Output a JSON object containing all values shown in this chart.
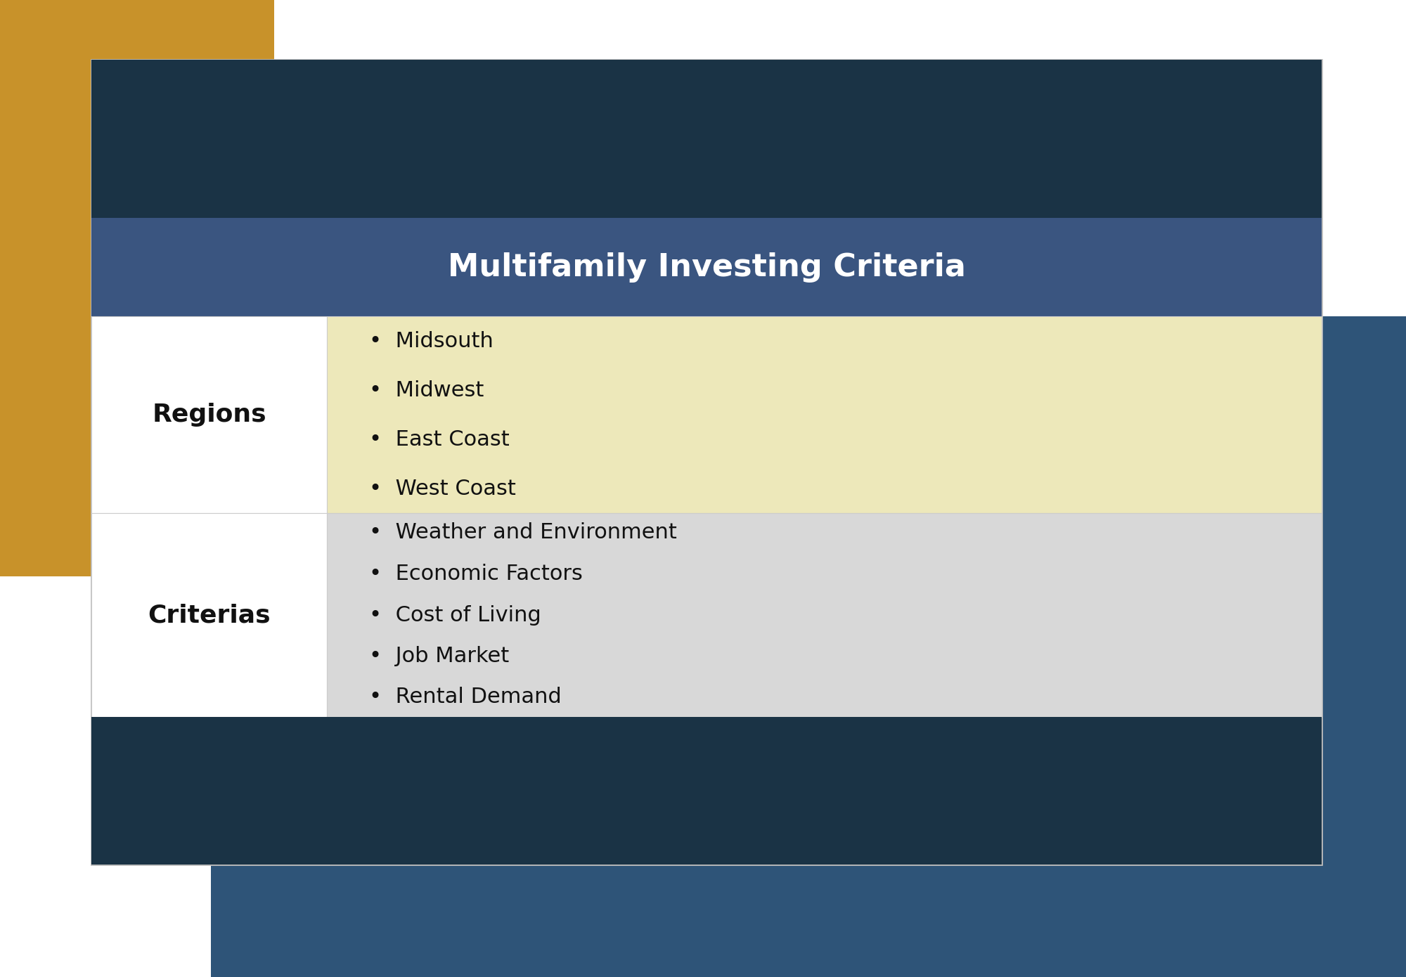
{
  "title": "Multifamily Investing Criteria",
  "title_color": "#ffffff",
  "title_fontsize": 32,
  "title_fontweight": "bold",
  "background_page": "#ffffff",
  "color_dark_teal": "#1a3345",
  "color_mid_blue": "#3a5580",
  "color_gold": "#c8922a",
  "color_steel_blue": "#2e5478",
  "color_cream": "#ede8ba",
  "color_lightgray": "#d8d8d8",
  "color_white": "#ffffff",
  "row1_label": "Regions",
  "row1_items": [
    "Midsouth",
    "Midwest",
    "East Coast",
    "West Coast"
  ],
  "row1_bg": "#ede8ba",
  "row2_label": "Criterias",
  "row2_items": [
    "Weather and Environment",
    "Economic Factors",
    "Cost of Living",
    "Job Market",
    "Rental Demand"
  ],
  "row2_bg": "#d8d8d8",
  "label_fontsize": 26,
  "label_fontweight": "bold",
  "item_fontsize": 22,
  "bullet": "•"
}
